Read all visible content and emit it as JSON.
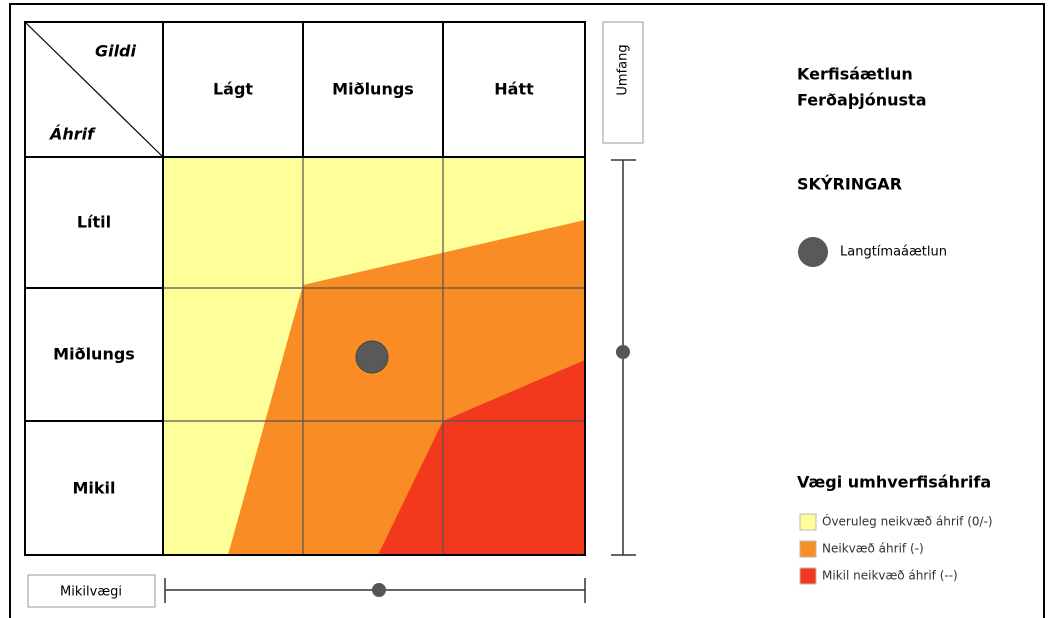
{
  "title": [
    "Kerfisáætlun",
    "Ferðaþjónusta"
  ],
  "matrix": {
    "corner": {
      "top": "Gildi",
      "bottom": "Áhrif"
    },
    "columns": [
      "Lágt",
      "Miðlungs",
      "Hátt"
    ],
    "rows": [
      "Lítil",
      "Miðlungs",
      "Mikil"
    ]
  },
  "axes": {
    "vertical": "Umfang",
    "horizontal": "Mikilvægi"
  },
  "legend": {
    "title": "SKÝRINGAR",
    "marker": "Langtímaáætlun"
  },
  "weights": {
    "title": "Vægi umhverfisáhrifa",
    "items": [
      {
        "name": "Óveruleg neikvæð áhrif (0/-)",
        "color": "#ffff99"
      },
      {
        "name": "Neikvæð áhrif (-)",
        "color": "#f98c24"
      },
      {
        "name": "Mikil neikvæð áhrif (--)",
        "color": "#f2381d"
      }
    ]
  }
}
